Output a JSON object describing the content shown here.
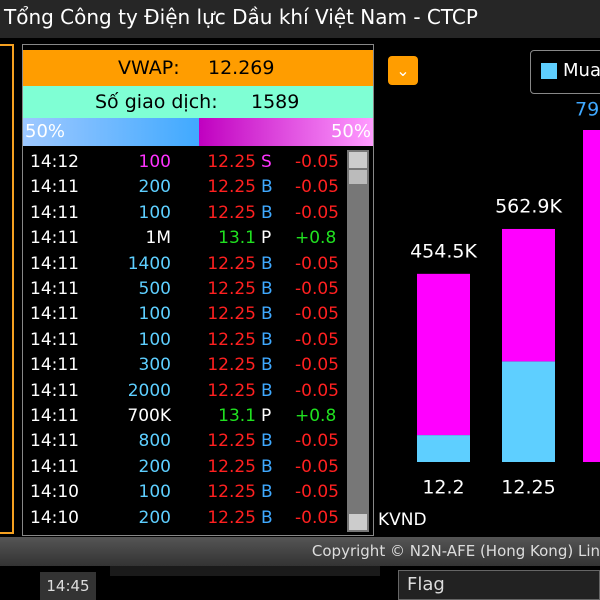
{
  "header": {
    "title": "Tổng Công ty Điện lực Dầu khí Việt Nam - CTCP"
  },
  "summary": {
    "vwap_label": "VWAP:",
    "vwap": "12.269",
    "trades_label": "Số giao dịch:",
    "trades": "1589",
    "buy_ratio": "50%",
    "sell_ratio": "50%"
  },
  "trades": [
    [
      "14:12",
      "100",
      "12.25",
      "S",
      "-0.05"
    ],
    [
      "14:11",
      "200",
      "12.25",
      "B",
      "-0.05"
    ],
    [
      "14:11",
      "100",
      "12.25",
      "B",
      "-0.05"
    ],
    [
      "14:11",
      "1M",
      "13.1",
      "P",
      "+0.8"
    ],
    [
      "14:11",
      "1400",
      "12.25",
      "B",
      "-0.05"
    ],
    [
      "14:11",
      "500",
      "12.25",
      "B",
      "-0.05"
    ],
    [
      "14:11",
      "100",
      "12.25",
      "B",
      "-0.05"
    ],
    [
      "14:11",
      "100",
      "12.25",
      "B",
      "-0.05"
    ],
    [
      "14:11",
      "300",
      "12.25",
      "B",
      "-0.05"
    ],
    [
      "14:11",
      "2000",
      "12.25",
      "B",
      "-0.05"
    ],
    [
      "14:11",
      "700K",
      "13.1",
      "P",
      "+0.8"
    ],
    [
      "14:11",
      "800",
      "12.25",
      "B",
      "-0.05"
    ],
    [
      "14:11",
      "200",
      "12.25",
      "B",
      "-0.05"
    ],
    [
      "14:10",
      "100",
      "12.25",
      "B",
      "-0.05"
    ],
    [
      "14:10",
      "200",
      "12.25",
      "B",
      "-0.05"
    ]
  ],
  "chart_data": {
    "type": "bar",
    "categories": [
      "12.2",
      "12.25"
    ],
    "totals": [
      454500,
      562900
    ],
    "value_labels": [
      "454.5K",
      "562.9K"
    ],
    "series": [
      {
        "name": "Mua",
        "color": "#5ecfff",
        "values": [
          65000,
          243000
        ]
      },
      {
        "color": "#ff00ff",
        "values": [
          389500,
          319900
        ]
      }
    ],
    "unit": "KVND",
    "partial_label": "79"
  },
  "footer": {
    "copyright": "Copyright © N2N-AFE (Hong Kong) Lin",
    "time": "14:45",
    "flag": "Flag"
  }
}
